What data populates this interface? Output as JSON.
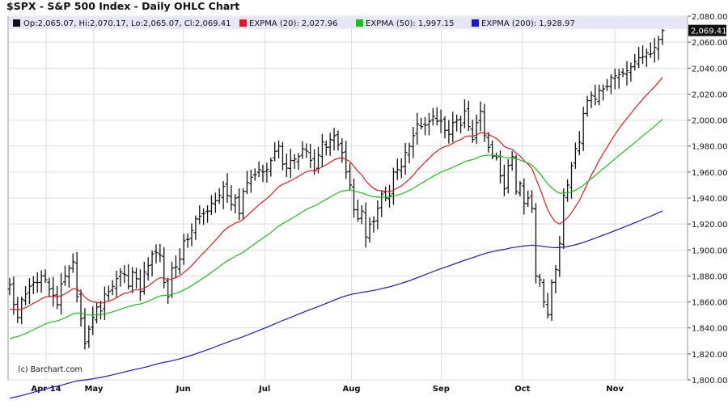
{
  "chart_data": {
    "type": "ohlc",
    "title": "$SPX - S&P 500 Index - Daily OHLC Chart",
    "credit": "(c) Barchart.com",
    "legend": {
      "ohlc": "Op:2,065.07, Hi:2,070.17, Lo:2,065.07, Cl:2,069.41",
      "items": [
        {
          "label": "EXPMA (20): 2,027.96",
          "color": "#e41a1a"
        },
        {
          "label": "EXPMA (50): 1,997.15",
          "color": "#16c416"
        },
        {
          "label": "EXPMA (200): 1,928.97",
          "color": "#1717d6"
        }
      ]
    },
    "last_value_label": "2,069.41",
    "ylim": [
      1800,
      2080
    ],
    "yticks": [
      {
        "v": 1800,
        "label": "1,800.00"
      },
      {
        "v": 1820,
        "label": "1,820.00"
      },
      {
        "v": 1840,
        "label": "1,840.00"
      },
      {
        "v": 1860,
        "label": "1,860.00"
      },
      {
        "v": 1880,
        "label": "1,880.00"
      },
      {
        "v": 1900,
        "label": "1,900.00"
      },
      {
        "v": 1920,
        "label": "1,920.00"
      },
      {
        "v": 1940,
        "label": "1,940.00"
      },
      {
        "v": 1960,
        "label": "1,960.00"
      },
      {
        "v": 1980,
        "label": "1,980.00"
      },
      {
        "v": 2000,
        "label": "2,000.00"
      },
      {
        "v": 2020,
        "label": "2,020.00"
      },
      {
        "v": 2040,
        "label": "2,040.00"
      },
      {
        "v": 2060,
        "label": "2,060.00"
      },
      {
        "v": 2080,
        "label": "2,080.00"
      }
    ],
    "x_dates": [
      "2014-04-01",
      "2014-11-20"
    ],
    "xticks": [
      {
        "date": "2014-04-14",
        "label": "Apr 14"
      },
      {
        "date": "2014-05-01",
        "label": "May"
      },
      {
        "date": "2014-06-02",
        "label": "Jun"
      },
      {
        "date": "2014-07-01",
        "label": "Jul"
      },
      {
        "date": "2014-08-01",
        "label": "Aug"
      },
      {
        "date": "2014-09-02",
        "label": "Sep"
      },
      {
        "date": "2014-10-01",
        "label": "Oct"
      },
      {
        "date": "2014-11-03",
        "label": "Nov"
      }
    ],
    "grid": true,
    "closes": [
      1873,
      1858,
      1848,
      1862,
      1866,
      1872,
      1875,
      1875,
      1880,
      1877,
      1870,
      1865,
      1858,
      1874,
      1880,
      1886,
      1891,
      1864,
      1847,
      1828,
      1839,
      1848,
      1856,
      1853,
      1866,
      1868,
      1872,
      1878,
      1883,
      1881,
      1872,
      1883,
      1878,
      1868,
      1883,
      1888,
      1897,
      1898,
      1896,
      1875,
      1864,
      1886,
      1887,
      1893,
      1907,
      1908,
      1915,
      1924,
      1926,
      1928,
      1930,
      1936,
      1938,
      1942,
      1949,
      1942,
      1935,
      1940,
      1928,
      1945,
      1952,
      1956,
      1958,
      1962,
      1960,
      1962,
      1969,
      1976,
      1980,
      1966,
      1963,
      1969,
      1970,
      1972,
      1978,
      1976,
      1969,
      1961,
      1973,
      1983,
      1979,
      1985,
      1988,
      1981,
      1975,
      1960,
      1950,
      1931,
      1924,
      1930,
      1910,
      1920,
      1922,
      1932,
      1943,
      1940,
      1942,
      1960,
      1962,
      1964,
      1975,
      1980,
      1988,
      1997,
      1995,
      1996,
      1999,
      2003,
      1999,
      1999,
      1992,
      1989,
      1998,
      2000,
      1996,
      2007,
      1995,
      1985,
      1998,
      2007,
      1988,
      1979,
      1972,
      1971,
      1957,
      1947,
      1965,
      1972,
      1945,
      1951,
      1936,
      1940,
      1932,
      1880,
      1877,
      1860,
      1850,
      1875,
      1885,
      1905,
      1942,
      1950,
      1965,
      1978,
      1983,
      2005,
      2015,
      2019,
      2016,
      2023,
      2024,
      2026,
      2033,
      2034,
      2035,
      2036,
      2038,
      2041,
      2045,
      2048,
      2049,
      2052,
      2051,
      2056,
      2062,
      2069
    ]
  }
}
